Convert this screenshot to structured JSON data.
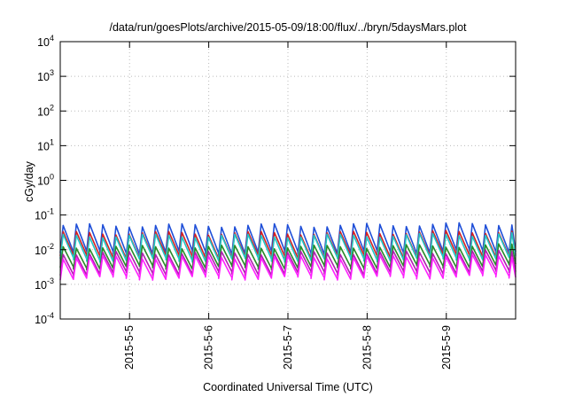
{
  "chart_data": {
    "type": "line",
    "title": "/data/run/goesPlots/archive/2015-05-09/18:00/flux/../bryn/5daysMars.plot",
    "xlabel": "Coordinated Universal Time (UTC)",
    "ylabel": "cGy/day",
    "yscale": "log",
    "ylim": [
      0.0001,
      10000
    ],
    "xlim": [
      "2015-05-04 03:00",
      "2015-05-09 21:00"
    ],
    "grid": true,
    "legend": "none",
    "y_ticks": [
      {
        "value": 0.0001,
        "mantissa": "10",
        "exp": "-4"
      },
      {
        "value": 0.001,
        "mantissa": "10",
        "exp": "-3"
      },
      {
        "value": 0.01,
        "mantissa": "10",
        "exp": "-2"
      },
      {
        "value": 0.1,
        "mantissa": "10",
        "exp": "-1"
      },
      {
        "value": 1,
        "mantissa": "10",
        "exp": "0"
      },
      {
        "value": 10,
        "mantissa": "10",
        "exp": "1"
      },
      {
        "value": 100,
        "mantissa": "10",
        "exp": "2"
      },
      {
        "value": 1000,
        "mantissa": "10",
        "exp": "3"
      },
      {
        "value": 10000,
        "mantissa": "10",
        "exp": "4"
      }
    ],
    "x_ticks": [
      {
        "value": "2015-05-05",
        "label": "2015-5-5"
      },
      {
        "value": "2015-05-06",
        "label": "2015-5-6"
      },
      {
        "value": "2015-05-07",
        "label": "2015-5-7"
      },
      {
        "value": "2015-05-08",
        "label": "2015-5-8"
      },
      {
        "value": "2015-05-09",
        "label": "2015-5-9"
      }
    ],
    "sawtooth_period_hours": 4,
    "series": [
      {
        "color": "#1f4fd8",
        "peak": 0.05,
        "trough": 0.008
      },
      {
        "color": "#d62020",
        "peak": 0.03,
        "trough": 0.006
      },
      {
        "color": "#20c8c8",
        "peak": 0.025,
        "trough": 0.005
      },
      {
        "color": "#2a8a2a",
        "peak": 0.012,
        "trough": 0.003
      },
      {
        "color": "#b020b0",
        "peak": 0.008,
        "trough": 0.002
      },
      {
        "color": "#ff20ff",
        "peak": 0.006,
        "trough": 0.0015
      }
    ]
  }
}
